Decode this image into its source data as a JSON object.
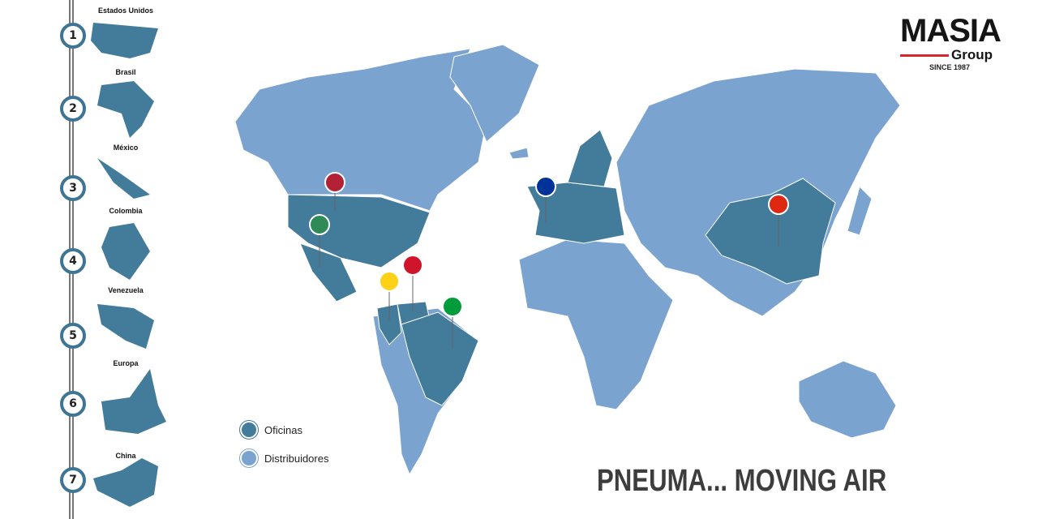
{
  "colors": {
    "oficinas": "#437b9a",
    "distribuidores": "#7ba3cf"
  },
  "timeline": [
    {
      "n": "1",
      "label": "Estados Unidos"
    },
    {
      "n": "2",
      "label": "Brasil"
    },
    {
      "n": "3",
      "label": "México"
    },
    {
      "n": "4",
      "label": "Colombia"
    },
    {
      "n": "5",
      "label": "Venezuela"
    },
    {
      "n": "6",
      "label": "Europa"
    },
    {
      "n": "7",
      "label": "China"
    }
  ],
  "legend": {
    "oficinas": "Oficinas",
    "distribuidores": "Distribuidores"
  },
  "logo": {
    "name": "MASIA",
    "group": "Group",
    "since": "SINCE 1987"
  },
  "slogan": "PNEUMA... MOVING AIR",
  "pins": [
    "usa-flag",
    "mexico-flag",
    "colombia-flag",
    "venezuela-flag",
    "brazil-flag",
    "eu-flag",
    "china-flag"
  ]
}
